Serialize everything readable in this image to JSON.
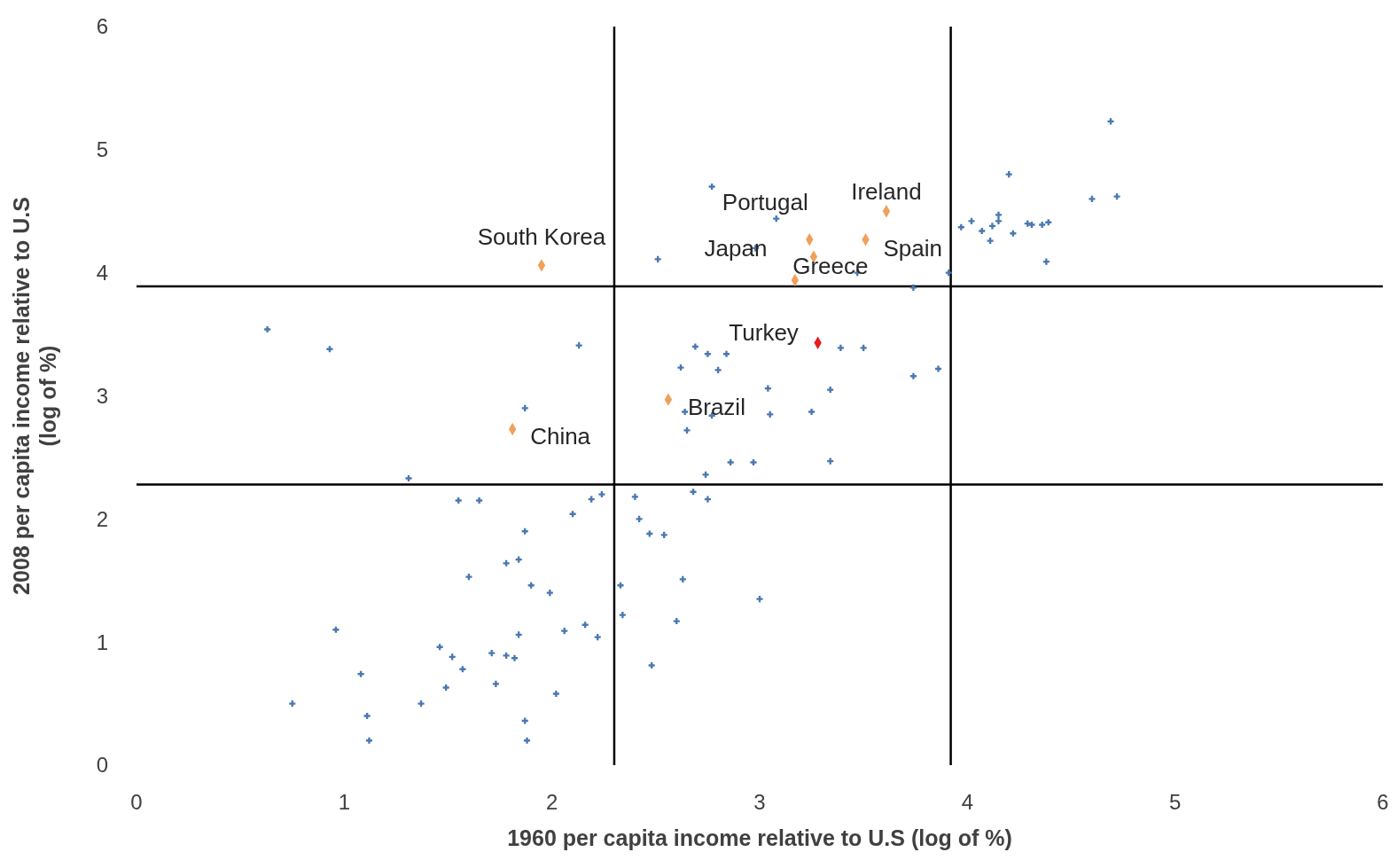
{
  "chart_data": {
    "type": "scatter",
    "xlabel": "1960 per capita income relative to U.S (log of %)",
    "ylabel": "2008 per capita income relative to U.S (log of %)",
    "xlim": [
      0,
      6
    ],
    "ylim": [
      0,
      6
    ],
    "xticks": [
      0,
      1,
      2,
      3,
      4,
      5,
      6
    ],
    "yticks": [
      0,
      1,
      2,
      3,
      4,
      5,
      6
    ],
    "grid": false,
    "series": [
      {
        "color": "#4a78b0",
        "marker": "cross",
        "x": [
          0.75,
          0.63,
          0.93,
          0.96,
          1.08,
          1.11,
          1.12,
          1.31,
          1.37,
          1.46,
          1.49,
          1.52,
          1.55,
          1.57,
          1.6,
          1.65,
          1.71,
          1.73,
          1.78,
          1.78,
          1.82,
          1.84,
          1.84,
          1.87,
          1.87,
          1.87,
          1.88,
          1.9,
          1.99,
          2.02,
          2.06,
          2.1,
          2.13,
          2.16,
          2.19,
          2.22,
          2.24,
          2.33,
          2.34,
          2.4,
          2.42,
          2.47,
          2.48,
          2.51,
          2.54,
          2.6,
          2.62,
          2.63,
          2.64,
          2.65,
          2.68,
          2.69,
          2.74,
          2.75,
          2.75,
          2.77,
          2.77,
          2.8,
          2.84,
          2.86,
          2.97,
          2.98,
          3.0,
          3.04,
          3.05,
          3.08,
          3.25,
          3.34,
          3.34,
          3.39,
          3.47,
          3.5,
          3.74,
          3.74,
          3.86,
          3.91,
          3.97,
          4.02,
          4.07,
          4.11,
          4.12,
          4.15,
          4.15,
          4.2,
          4.22,
          4.29,
          4.31,
          4.36,
          4.39,
          4.38,
          4.6,
          4.69,
          4.72
        ],
        "values": [
          0.5,
          3.54,
          3.38,
          1.1,
          0.74,
          0.4,
          0.2,
          2.33,
          0.5,
          0.96,
          0.63,
          0.88,
          2.15,
          0.78,
          1.53,
          2.15,
          0.91,
          0.66,
          1.64,
          0.89,
          0.87,
          1.67,
          1.06,
          1.9,
          2.9,
          0.36,
          0.2,
          1.46,
          1.4,
          0.58,
          1.09,
          2.04,
          3.41,
          1.14,
          2.16,
          1.04,
          2.2,
          1.46,
          1.22,
          2.18,
          2.0,
          1.88,
          0.81,
          4.11,
          1.87,
          1.17,
          3.23,
          1.51,
          2.87,
          2.72,
          2.22,
          3.4,
          2.36,
          2.16,
          3.34,
          4.7,
          2.84,
          3.21,
          3.34,
          2.46,
          2.46,
          4.2,
          1.35,
          3.06,
          2.85,
          4.44,
          2.87,
          3.05,
          2.47,
          3.39,
          4.0,
          3.39,
          3.88,
          3.16,
          3.22,
          4.0,
          4.37,
          4.42,
          4.34,
          4.26,
          4.38,
          4.47,
          4.42,
          4.8,
          4.32,
          4.4,
          4.39,
          4.39,
          4.41,
          4.09,
          4.6,
          5.23,
          4.62
        ]
      },
      {
        "color": "#f0a05a",
        "marker": "diamond",
        "x": [
          1.95,
          1.81,
          2.56,
          3.24,
          3.26,
          3.61,
          3.51,
          3.17
        ],
        "values": [
          4.06,
          2.73,
          2.97,
          4.27,
          4.13,
          4.5,
          4.27,
          3.94
        ]
      },
      {
        "color": "#e81c1c",
        "marker": "diamond",
        "x": [
          3.28
        ],
        "values": [
          3.43
        ]
      }
    ],
    "annotations": [
      {
        "text": "South Korea",
        "x": 1.95,
        "y": 4.06
      },
      {
        "text": "China",
        "x": 1.81,
        "y": 2.73
      },
      {
        "text": "Brazil",
        "x": 2.56,
        "y": 2.97
      },
      {
        "text": "Portugal",
        "x": 3.24,
        "y": 4.27
      },
      {
        "text": "Japan",
        "x": 3.26,
        "y": 4.13
      },
      {
        "text": "Ireland",
        "x": 3.61,
        "y": 4.5
      },
      {
        "text": "Spain",
        "x": 3.51,
        "y": 4.27
      },
      {
        "text": "Greece",
        "x": 3.17,
        "y": 3.94
      },
      {
        "text": "Turkey",
        "x": 3.28,
        "y": 3.43
      }
    ],
    "ref_lines": [
      {
        "axis": "x",
        "value": 2.3,
        "color": "#000000"
      },
      {
        "axis": "x",
        "value": 3.92,
        "color": "#000000"
      },
      {
        "axis": "y",
        "value": 3.89,
        "color": "#000000"
      },
      {
        "axis": "y",
        "value": 2.28,
        "color": "#000000"
      }
    ]
  }
}
